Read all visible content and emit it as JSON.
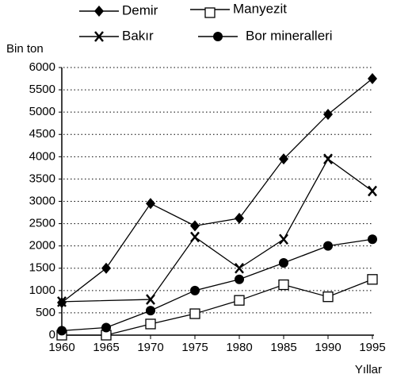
{
  "chart_data": {
    "type": "line",
    "y_label": "Bin ton",
    "x_label": "Yıllar",
    "x": [
      1960,
      1965,
      1970,
      1975,
      1980,
      1985,
      1990,
      1995
    ],
    "series": [
      {
        "name": "Demir",
        "color": "#000000",
        "marker": "diamond",
        "values": [
          730,
          1500,
          2950,
          2450,
          2620,
          3950,
          4950,
          5750
        ]
      },
      {
        "name": "Manyezit",
        "color": "#000000",
        "marker": "square",
        "values": [
          0,
          0,
          250,
          480,
          780,
          1130,
          860,
          1250
        ]
      },
      {
        "name": "Bakır",
        "color": "#000000",
        "marker": "x",
        "x": [
          1960,
          1970,
          1975,
          1980,
          1985,
          1990,
          1995
        ],
        "values": [
          750,
          800,
          2200,
          1500,
          2150,
          3950,
          3230
        ]
      },
      {
        "name": "Bor mineralleri",
        "color": "#000000",
        "marker": "circle",
        "values": [
          100,
          170,
          550,
          1000,
          1250,
          1620,
          2000,
          2150
        ]
      }
    ],
    "xlim": [
      1960,
      1995
    ],
    "xticks": [
      1960,
      1965,
      1970,
      1975,
      1980,
      1985,
      1990,
      1995
    ],
    "ylim": [
      0,
      6000
    ],
    "yticks": [
      0,
      500,
      1000,
      1500,
      2000,
      2500,
      3000,
      3500,
      4000,
      4500,
      5000,
      5500,
      6000
    ],
    "grid": true
  }
}
